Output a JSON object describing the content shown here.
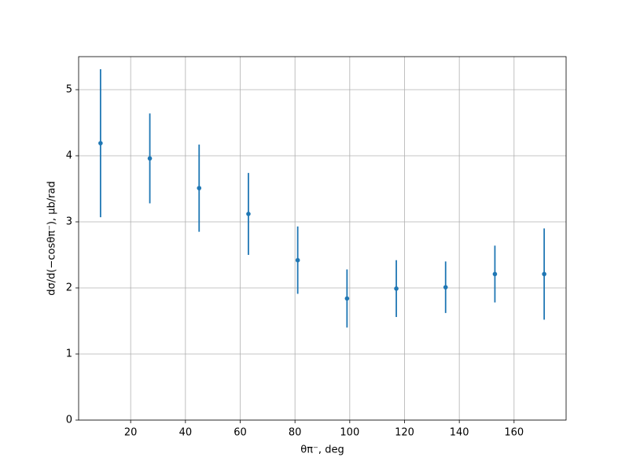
{
  "chart_data": {
    "type": "scatter",
    "x_label": "θπ⁻, deg",
    "y_label": "dσ/d(−cosθπ⁻), μb/rad",
    "x": [
      9,
      27,
      45,
      63,
      81,
      99,
      117,
      135,
      153,
      171
    ],
    "series": [
      {
        "color": "#1f77b4",
        "values": [
          4.19,
          3.96,
          3.51,
          3.12,
          2.42,
          1.84,
          1.99,
          2.01,
          2.21,
          2.21
        ],
        "errors": [
          1.12,
          0.68,
          0.66,
          0.62,
          0.51,
          0.44,
          0.43,
          0.39,
          0.43,
          0.69
        ]
      }
    ],
    "xlim": [
      1,
      179
    ],
    "ylim": [
      0,
      5.5
    ],
    "xticks": [
      20,
      40,
      60,
      80,
      100,
      120,
      140,
      160
    ],
    "yticks": [
      0,
      1,
      2,
      3,
      4,
      5
    ],
    "grid": true
  }
}
